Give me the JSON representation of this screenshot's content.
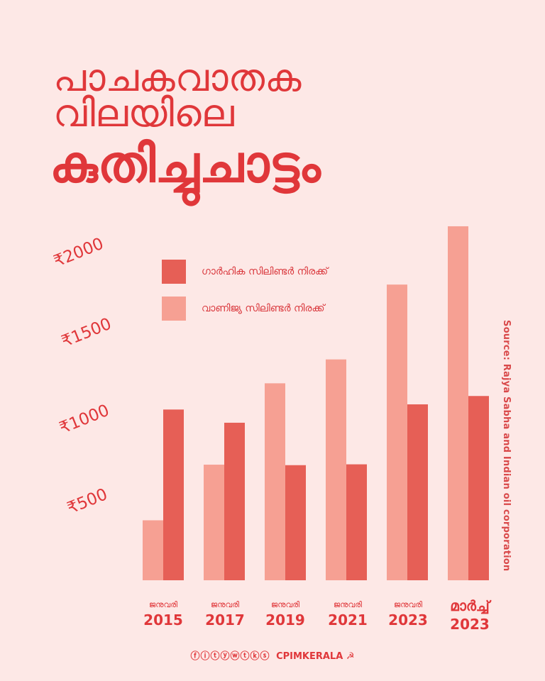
{
  "title": {
    "line1": "പാചകവാതക",
    "line2": "വിലയിലെ",
    "line3": "കുതിച്ചുചാട്ടം"
  },
  "legend": {
    "domestic": "ഗാർഹിക സിലിണ്ടർ നിരക്ക്",
    "commercial": "വാണിജ്യ സിലിണ്ടർ നിരക്ക്"
  },
  "source": "Source: Rajya Sabha and Indian oil corporation",
  "y_tick_labels": [
    "₹500",
    "₹1000",
    "₹1500",
    "₹2000"
  ],
  "category_labels": [
    {
      "month": "ജനുവരി",
      "year": "2015"
    },
    {
      "month": "ജനുവരി",
      "year": "2017"
    },
    {
      "month": "ജനുവരി",
      "year": "2019"
    },
    {
      "month": "ജനുവരി",
      "year": "2021"
    },
    {
      "month": "ജനുവരി",
      "year": "2023"
    },
    {
      "month": "മാർച്ച്",
      "year": "2023"
    }
  ],
  "footer": {
    "icons": "ⓕⓘⓣⓨⓦⓣⓚⓢ",
    "brand": "CPIMKERALA",
    "symbol": "☭"
  },
  "colors": {
    "background": "#fde8e6",
    "accent": "#e0373a",
    "domestic": "#e65f56",
    "commercial": "#f6a093"
  },
  "chart_data": {
    "type": "bar",
    "categories": [
      "ജനുവരി 2015",
      "ജനുവരി 2017",
      "ജനുവരി 2019",
      "ജനുവരി 2021",
      "ജനുവരി 2023",
      "മാർച്ച് 2023"
    ],
    "series": [
      {
        "name": "വാണിജ്യ സിലിണ്ടർ നിരക്ക്",
        "values": [
          359,
          692,
          1179,
          1322,
          1770,
          2119
        ]
      },
      {
        "name": "ഗാർഹിക സിലിണ്ടർ നിരക്ക്",
        "values": [
          1022,
          943,
          689,
          694,
          1053,
          1103
        ]
      }
    ],
    "y_ticks": [
      500,
      1000,
      1500,
      2000
    ],
    "ylim": [
      0,
      2000
    ],
    "grid": false,
    "legend_position": "top-left"
  }
}
